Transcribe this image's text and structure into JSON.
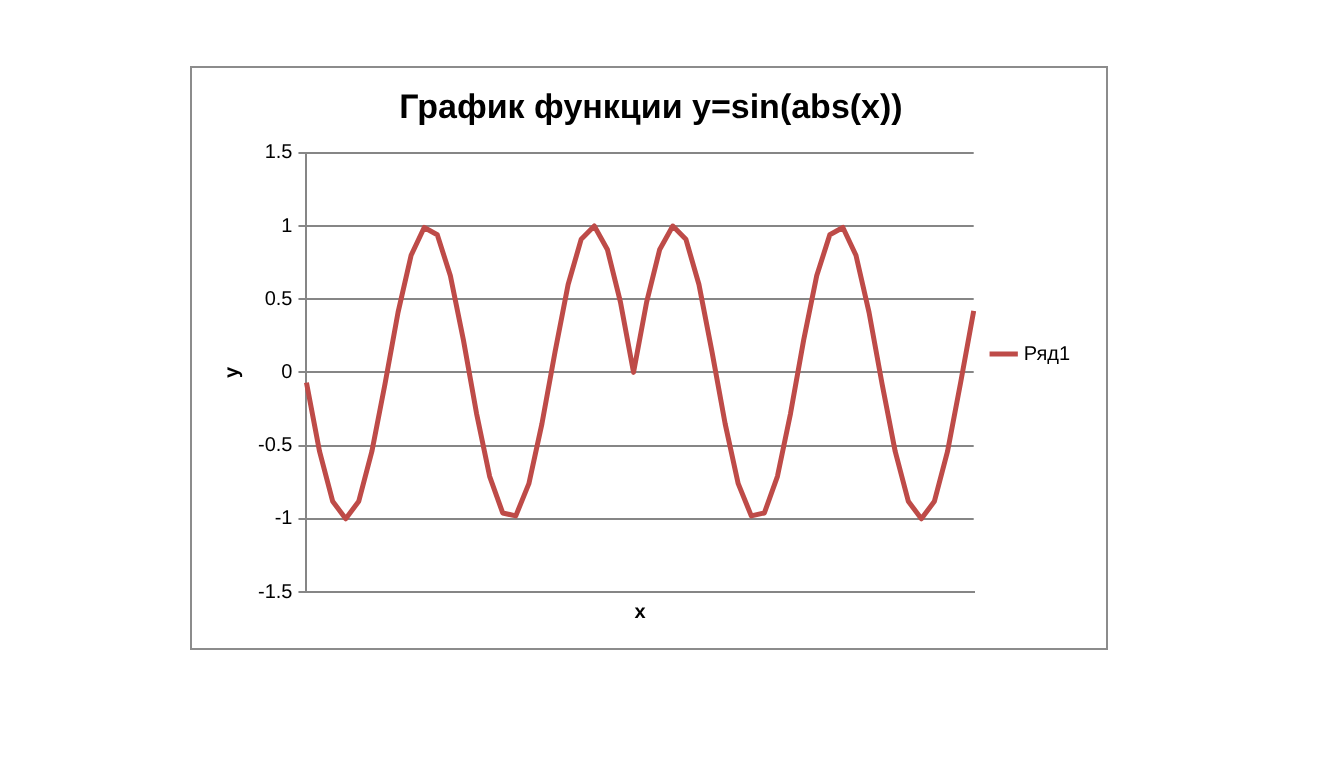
{
  "chart_data": {
    "type": "line",
    "title": "График функции y=sin(abs(x))",
    "xlabel": "x",
    "ylabel": "y",
    "categories": [
      null,
      null,
      null,
      null,
      null,
      null,
      null,
      null,
      null,
      null,
      null,
      null,
      null,
      null,
      null,
      null,
      null,
      null,
      null,
      null,
      null,
      null,
      null,
      null,
      null,
      null,
      null,
      null,
      null,
      null,
      null,
      null,
      null,
      null,
      null,
      null,
      null,
      null,
      null,
      null,
      null,
      null,
      null,
      null,
      null,
      null,
      null,
      null,
      null,
      null,
      null,
      null
    ],
    "series": [
      {
        "name": "Ряд1",
        "color": "#be4b48",
        "values": [
          -0.07,
          -0.54,
          -0.88,
          -1,
          -0.88,
          -0.54,
          -0.08,
          0.41,
          0.8,
          0.99,
          0.94,
          0.66,
          0.22,
          -0.28,
          -0.71,
          -0.96,
          -0.98,
          -0.76,
          -0.35,
          0.14,
          0.6,
          0.91,
          1,
          0.84,
          0.48,
          0,
          0.48,
          0.84,
          1,
          0.91,
          0.6,
          0.14,
          -0.35,
          -0.76,
          -0.98,
          -0.96,
          -0.71,
          -0.28,
          0.22,
          0.66,
          0.94,
          0.99,
          0.8,
          0.41,
          -0.08,
          -0.54,
          -0.88,
          -1,
          -0.88,
          -0.54,
          -0.07,
          0.42
        ]
      }
    ],
    "ylim": [
      -1.5,
      1.5
    ],
    "yticks": [
      -1.5,
      -1,
      -0.5,
      0,
      0.5,
      1,
      1.5
    ],
    "grid": "y",
    "legend": "right",
    "tick_labels": "y",
    "marker": "none",
    "line_style": "solid"
  }
}
